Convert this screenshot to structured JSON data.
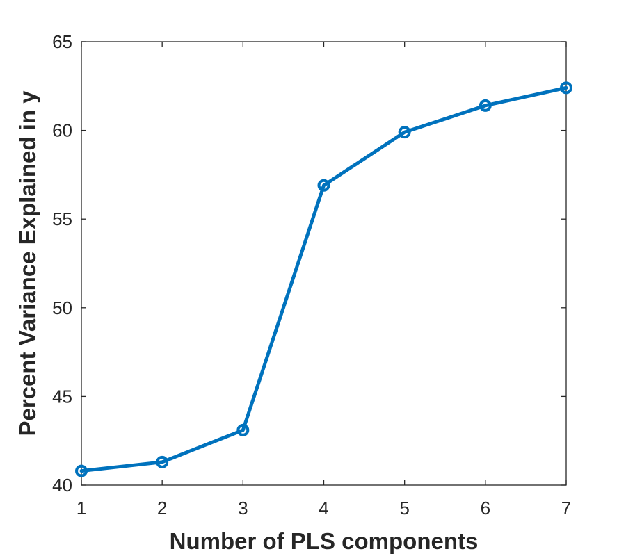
{
  "chart_data": {
    "type": "line",
    "title": "",
    "xlabel": "Number of PLS components",
    "ylabel": "Percent Variance Explained in y",
    "xlim": [
      1,
      7
    ],
    "ylim": [
      40,
      65
    ],
    "xticks": [
      1,
      2,
      3,
      4,
      5,
      6,
      7
    ],
    "yticks": [
      40,
      45,
      50,
      55,
      60,
      65
    ],
    "grid": false,
    "series": [
      {
        "color": "#0072BD",
        "marker": "circle",
        "x": [
          1,
          2,
          3,
          4,
          5,
          6,
          7
        ],
        "y": [
          40.8,
          41.3,
          43.1,
          56.9,
          59.9,
          61.4,
          62.4
        ]
      }
    ]
  }
}
